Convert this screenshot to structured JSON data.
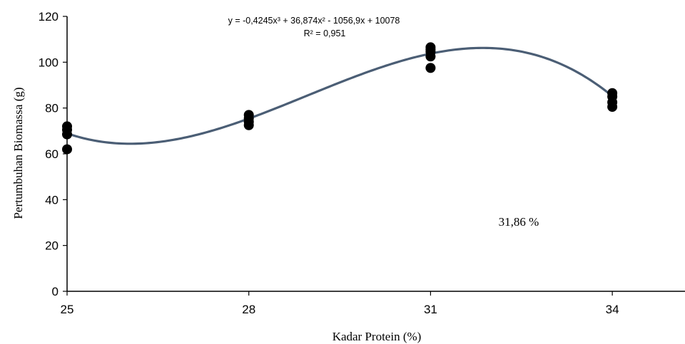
{
  "chart_data": {
    "type": "scatter",
    "xlabel": "Kadar Protein (%)",
    "ylabel": "Pertumbuhan Biomassa (g)",
    "xlim": [
      25,
      35.2
    ],
    "ylim": [
      0,
      120
    ],
    "x_ticks": [
      25,
      28,
      31,
      34
    ],
    "y_ticks": [
      0,
      20,
      40,
      60,
      80,
      100,
      120
    ],
    "grid": false,
    "series": [
      {
        "x": [
          25,
          25,
          25,
          25,
          28,
          28,
          28,
          28,
          31,
          31,
          31,
          31,
          31,
          34,
          34,
          34,
          34
        ],
        "y": [
          62,
          68.5,
          70.5,
          72,
          72.5,
          74,
          75.5,
          77,
          97.5,
          102.5,
          104.5,
          105.5,
          106.5,
          80.5,
          82.5,
          85,
          86.5
        ],
        "color": "#000000"
      }
    ],
    "trendline": {
      "type": "polynomial",
      "degree": 3,
      "coefficients": [
        -0.4245,
        36.874,
        -1056.9,
        10078
      ],
      "color": "#4b5e75",
      "x_range": [
        25,
        34
      ]
    },
    "annotations": {
      "equation": "y = -0,4245x³ + 36,874x² - 1056,9x + 10078",
      "r_squared": "R² = 0,951",
      "note": "31,86 %"
    }
  }
}
